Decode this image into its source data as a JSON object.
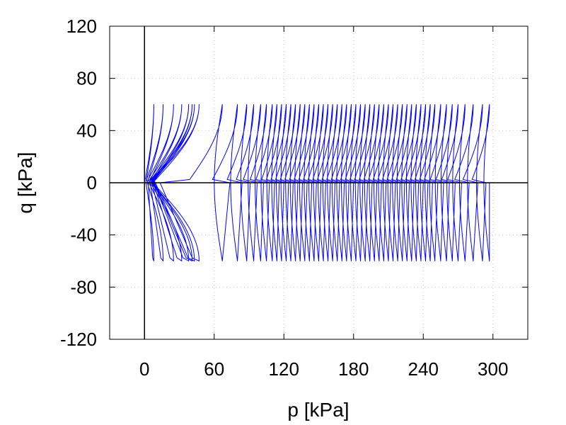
{
  "chart_data": {
    "type": "line",
    "title": "",
    "xlabel": "p [kPa]",
    "ylabel": "q [kPa]",
    "xlim": [
      -30,
      330
    ],
    "ylim": [
      -120,
      120
    ],
    "xticks": [
      0,
      60,
      120,
      180,
      240,
      300
    ],
    "yticks": [
      -120,
      -80,
      -40,
      0,
      40,
      80,
      120
    ],
    "grid": true,
    "legend": "none",
    "series": [
      {
        "color": "#0000ff",
        "description_values": {
          "q_amplitude": 60,
          "p_start": 0,
          "p_end": 297,
          "cycle_peak_p_values": [
            8,
            16,
            25,
            32,
            38,
            41,
            43,
            47,
            67,
            80,
            88,
            94,
            100,
            105,
            110,
            114,
            118,
            122,
            126,
            130,
            134,
            138,
            142,
            146,
            150,
            154,
            158,
            162,
            166,
            170,
            174,
            178,
            182,
            186,
            190,
            194,
            198,
            202,
            206,
            210,
            214,
            218,
            222,
            226,
            230,
            234,
            238,
            242,
            246,
            250,
            255,
            260,
            265,
            270,
            276,
            283,
            291,
            297
          ]
        }
      }
    ]
  }
}
